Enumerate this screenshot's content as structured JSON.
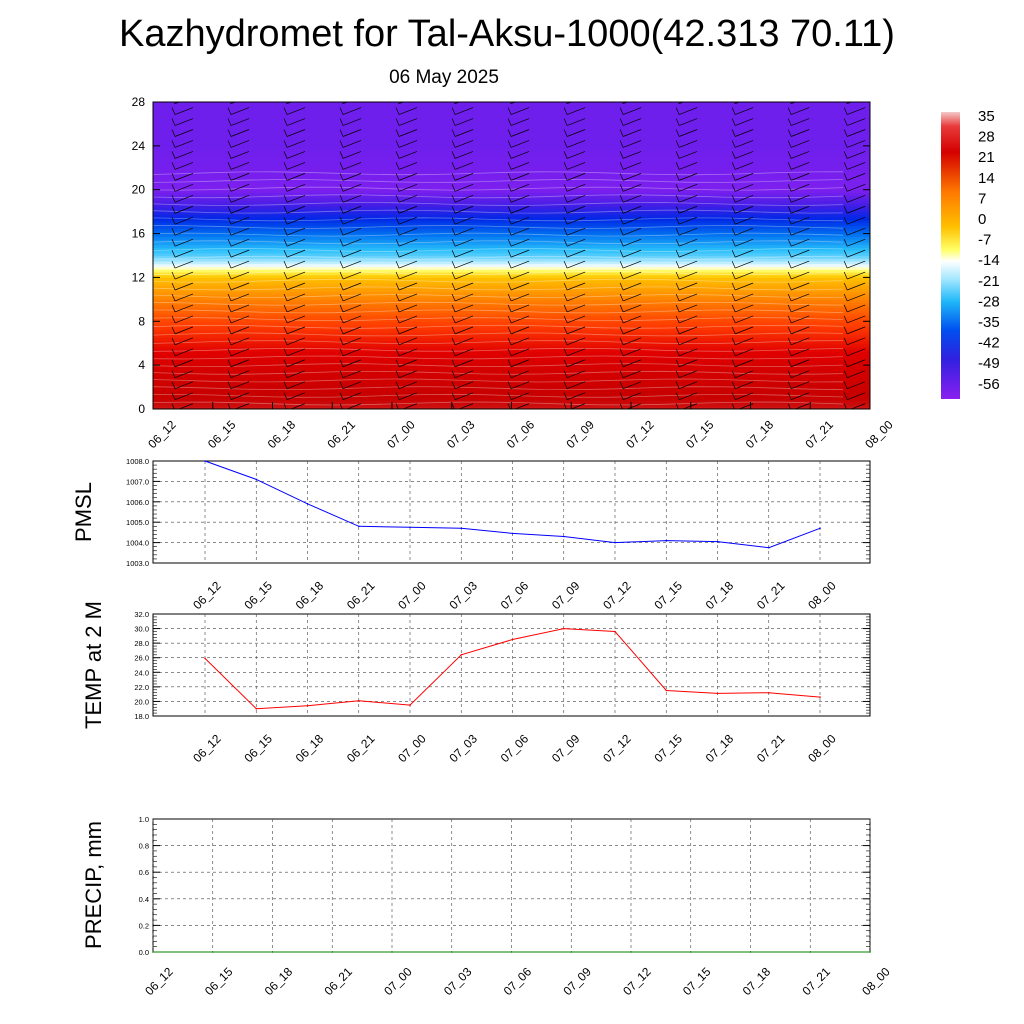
{
  "header": {
    "title": "Kazhydromet for Tal-Aksu-1000(42.313 70.11)",
    "date": "06 May 2025"
  },
  "chart_data": [
    {
      "type": "heatmap",
      "name": "vertical-temperature-profile",
      "y_ticks": [
        0,
        4,
        8,
        12,
        16,
        20,
        24,
        28
      ],
      "ylim": [
        0,
        28
      ],
      "x_ticks": [
        "06_12",
        "06_15",
        "06_18",
        "06_21",
        "07_00",
        "07_03",
        "07_06",
        "07_09",
        "07_12",
        "07_15",
        "07_18",
        "07_21",
        "08_00"
      ],
      "colorbar_labels": [
        "35",
        "28",
        "21",
        "14",
        "7",
        "0",
        "-7",
        "-14",
        "-21",
        "-28",
        "-35",
        "-42",
        "-49",
        "-56"
      ],
      "colorbar_range": [
        -60,
        38
      ],
      "levels": [
        0,
        2,
        4,
        6,
        8,
        10,
        12,
        13,
        14,
        16,
        18,
        20,
        22,
        24,
        28
      ],
      "temps": [
        32,
        30,
        27,
        22,
        17,
        10,
        1,
        -12,
        -22,
        -33,
        -46,
        -58,
        -57,
        -56,
        -56
      ],
      "wind_barbs": "on",
      "grid": false
    },
    {
      "type": "line",
      "name": "pmsl",
      "ylabel": "PMSL",
      "x": [
        "06_12",
        "06_15",
        "06_18",
        "06_21",
        "07_00",
        "07_03",
        "07_06",
        "07_09",
        "07_12",
        "07_15",
        "07_18",
        "07_21",
        "08_00"
      ],
      "y": [
        1008.0,
        1007.1,
        1005.9,
        1004.8,
        1004.75,
        1004.7,
        1004.45,
        1004.3,
        1004.0,
        1004.1,
        1004.05,
        1003.75,
        1004.7
      ],
      "ylim": [
        1003.0,
        1008.0
      ],
      "y_tick_labels": [
        "1003.0",
        "1004.0",
        "1005.0",
        "1006.0",
        "1007.0",
        "1008.0"
      ],
      "color": "#0000ff",
      "grid": true
    },
    {
      "type": "line",
      "name": "temp-2m",
      "ylabel": "TEMP at 2 M",
      "x": [
        "06_12",
        "06_15",
        "06_18",
        "06_21",
        "07_00",
        "07_03",
        "07_06",
        "07_09",
        "07_12",
        "07_15",
        "07_18",
        "07_21",
        "08_00"
      ],
      "y": [
        25.9,
        19.0,
        19.4,
        20.1,
        19.5,
        26.4,
        28.5,
        30.0,
        29.6,
        21.5,
        21.1,
        21.2,
        20.6
      ],
      "ylim": [
        18.0,
        32.0
      ],
      "y_tick_labels": [
        "18.0",
        "20.0",
        "22.0",
        "24.0",
        "26.0",
        "28.0",
        "30.0",
        "32.0"
      ],
      "color": "#ff0000",
      "grid": true
    },
    {
      "type": "line",
      "name": "precip",
      "ylabel": "PRECIP, mm",
      "x": [
        "06_12",
        "06_15",
        "06_18",
        "06_21",
        "07_00",
        "07_03",
        "07_06",
        "07_09",
        "07_12",
        "07_15",
        "07_18",
        "07_21",
        "08_00"
      ],
      "y": [
        0,
        0,
        0,
        0,
        0,
        0,
        0,
        0,
        0,
        0,
        0,
        0,
        0
      ],
      "ylim": [
        0.0,
        1.0
      ],
      "y_tick_labels": [
        "0.0",
        "0.2",
        "0.4",
        "0.6",
        "0.8",
        "1.0"
      ],
      "color": "#008000",
      "grid": true
    }
  ]
}
